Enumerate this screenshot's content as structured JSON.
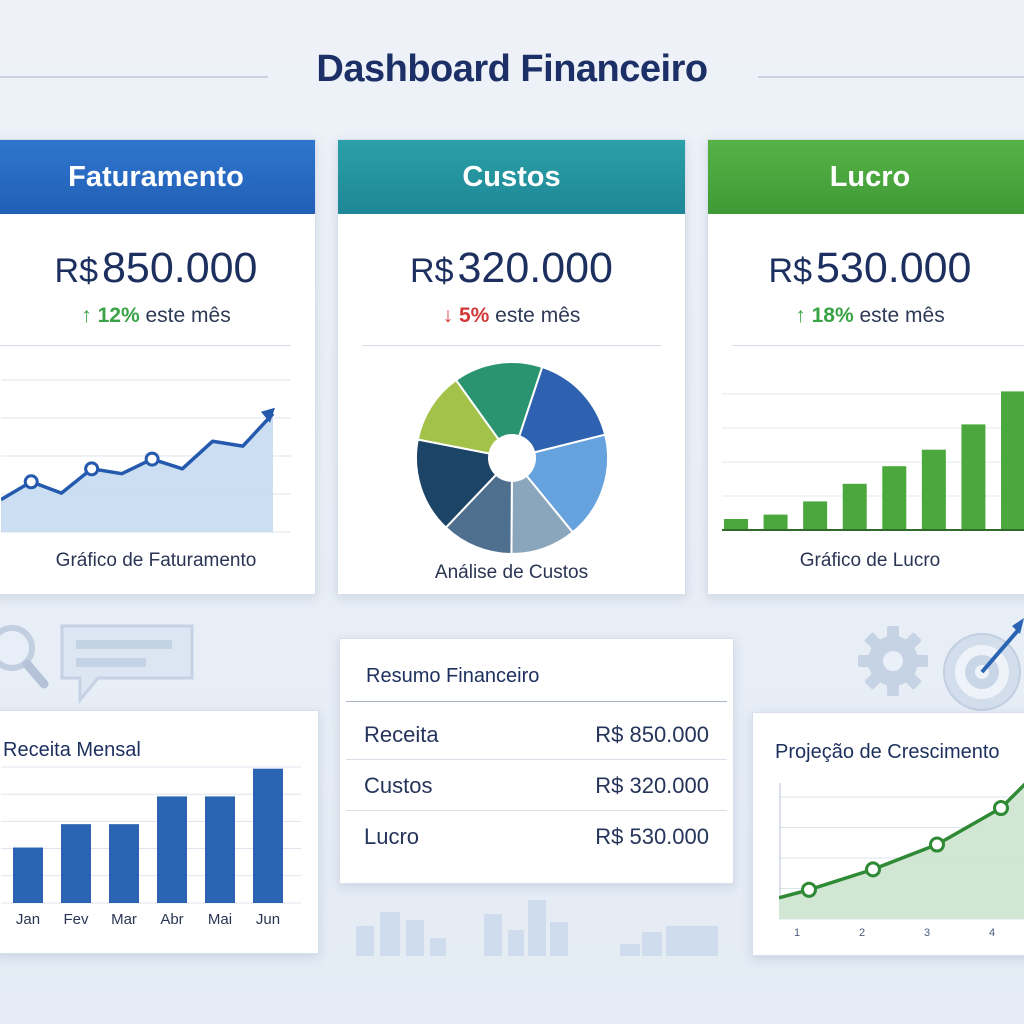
{
  "dashboard": {
    "title": "Dashboard Financeiro"
  },
  "cards": {
    "faturamento": {
      "header": "Faturamento",
      "currency": "R$",
      "amount": "850.000",
      "arrow": "↑",
      "percent": "12%",
      "period": "este mês",
      "caption": "Gráfico de Faturamento",
      "color": "#2b6cc4",
      "trend_color": "#3aa346"
    },
    "custos": {
      "header": "Custos",
      "currency": "R$",
      "amount": "320.000",
      "arrow": "↓",
      "percent": "5%",
      "period": "este mês",
      "caption": "Análise de Custos",
      "color": "#2596a3",
      "trend_color": "#d23a3a"
    },
    "lucro": {
      "header": "Lucro",
      "currency": "R$",
      "amount": "530.000",
      "arrow": "↑",
      "percent": "18%",
      "period": "este mês",
      "caption": "Gráfico de Lucro",
      "color": "#4aa840",
      "trend_color": "#3aa346"
    }
  },
  "resumo": {
    "title": "Resumo Financeiro",
    "rows": [
      {
        "label": "Receita",
        "value": "R$ 850.000"
      },
      {
        "label": "Custos",
        "value": "R$ 320.000"
      },
      {
        "label": "Lucro",
        "value": "R$ 530.000"
      }
    ]
  },
  "receita_mensal": {
    "title": "Receita Mensal"
  },
  "projecao": {
    "title": "Projeção de Crescimento"
  },
  "icons": [
    "magnifier-icon",
    "chat-bubble-icon",
    "gear-icon",
    "target-icon"
  ],
  "chart_data": [
    {
      "type": "area",
      "caption": "Gráfico de Faturamento",
      "x": [
        1,
        2,
        3,
        4,
        5,
        6,
        7,
        8,
        9,
        10
      ],
      "values": [
        2.0,
        3.1,
        2.4,
        3.9,
        3.6,
        4.5,
        3.9,
        5.6,
        5.3,
        7.3
      ],
      "ylim": [
        0,
        10
      ],
      "grid": true
    },
    {
      "type": "pie",
      "caption": "Análise de Custos",
      "slices": [
        {
          "value": 16,
          "color": "#2e62b0"
        },
        {
          "value": 18,
          "color": "#66a2de"
        },
        {
          "value": 11,
          "color": "#8aa6bc"
        },
        {
          "value": 12,
          "color": "#4f6f8e"
        },
        {
          "value": 16,
          "color": "#1c4466"
        },
        {
          "value": 12,
          "color": "#a3c24a"
        },
        {
          "value": 15,
          "color": "#2a9370"
        }
      ]
    },
    {
      "type": "bar",
      "caption": "Gráfico de Lucro",
      "values": [
        1.0,
        1.4,
        2.6,
        4.2,
        5.8,
        7.3,
        9.6,
        12.6
      ],
      "ylim": [
        0,
        14
      ],
      "grid": true
    },
    {
      "type": "bar",
      "title": "Receita Mensal",
      "categories": [
        "Jan",
        "Fev",
        "Mar",
        "Abr",
        "Mai",
        "Jun"
      ],
      "values": [
        3.8,
        5.4,
        5.4,
        7.3,
        7.3,
        9.2
      ],
      "ylim": [
        0,
        10
      ],
      "grid": true
    },
    {
      "type": "area",
      "title": "Projeção de Crescimento",
      "x_ticks": [
        "1",
        "2",
        "3",
        "4"
      ],
      "x": [
        1,
        2,
        3,
        4
      ],
      "values": [
        2.0,
        3.4,
        5.1,
        7.6
      ],
      "ylim": [
        0,
        10
      ],
      "grid": true
    }
  ]
}
